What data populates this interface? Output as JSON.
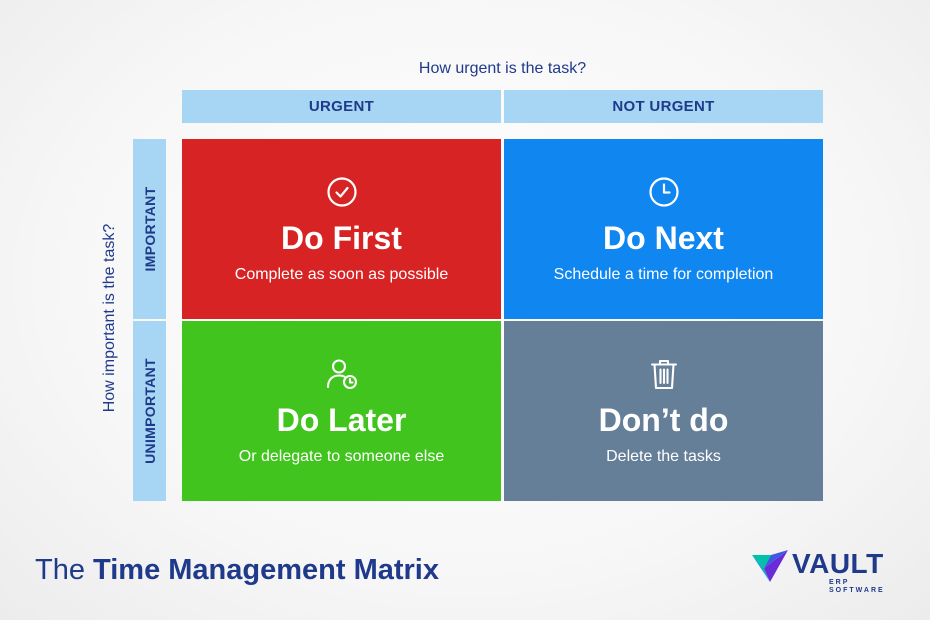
{
  "axes": {
    "top_title": "How urgent is the task?",
    "left_title": "How important is the task?"
  },
  "columns": [
    {
      "label": "URGENT"
    },
    {
      "label": "NOT URGENT"
    }
  ],
  "rows": [
    {
      "label": "IMPORTANT"
    },
    {
      "label": "UNIMPORTANT"
    }
  ],
  "quadrants": [
    {
      "title": "Do First",
      "subtitle": "Complete as soon as possible",
      "icon": "check-circle-icon",
      "color": "#d72323"
    },
    {
      "title": "Do Next",
      "subtitle": "Schedule a time for completion",
      "icon": "clock-icon",
      "color": "#0f86f0"
    },
    {
      "title": "Do Later",
      "subtitle": "Or delegate to someone else",
      "icon": "user-clock-icon",
      "color": "#41c41d"
    },
    {
      "title": "Don’t do",
      "subtitle": "Delete the tasks",
      "icon": "trash-icon",
      "color": "#647f97"
    }
  ],
  "footer": {
    "title_prefix": "The ",
    "title_bold": "Time Management Matrix"
  },
  "logo": {
    "name": "VAULT",
    "tagline": "ERP SOFTWARE",
    "colors": [
      "#00c2a8",
      "#6a2bd9",
      "#1f3a8a"
    ]
  }
}
